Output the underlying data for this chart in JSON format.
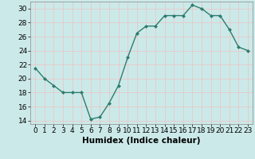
{
  "x": [
    0,
    1,
    2,
    3,
    4,
    5,
    6,
    7,
    8,
    9,
    10,
    11,
    12,
    13,
    14,
    15,
    16,
    17,
    18,
    19,
    20,
    21,
    22,
    23
  ],
  "y": [
    21.5,
    20.0,
    19.0,
    18.0,
    18.0,
    18.0,
    14.2,
    14.5,
    16.5,
    19.0,
    23.0,
    26.5,
    27.5,
    27.5,
    29.0,
    29.0,
    29.0,
    30.5,
    30.0,
    29.0,
    29.0,
    27.0,
    24.5,
    24.0
  ],
  "line_color": "#2e7d6e",
  "marker": "D",
  "marker_size": 2.0,
  "bg_color": "#cce9e9",
  "grid_major_color": "#e8c8c8",
  "grid_minor_color": "#cce9e9",
  "xlabel": "Humidex (Indice chaleur)",
  "xlim": [
    -0.5,
    23.5
  ],
  "ylim": [
    13.5,
    31.0
  ],
  "yticks": [
    14,
    16,
    18,
    20,
    22,
    24,
    26,
    28,
    30
  ],
  "xticks": [
    0,
    1,
    2,
    3,
    4,
    5,
    6,
    7,
    8,
    9,
    10,
    11,
    12,
    13,
    14,
    15,
    16,
    17,
    18,
    19,
    20,
    21,
    22,
    23
  ],
  "xlabel_fontsize": 7.5,
  "tick_fontsize": 6.5,
  "line_width": 1.0
}
